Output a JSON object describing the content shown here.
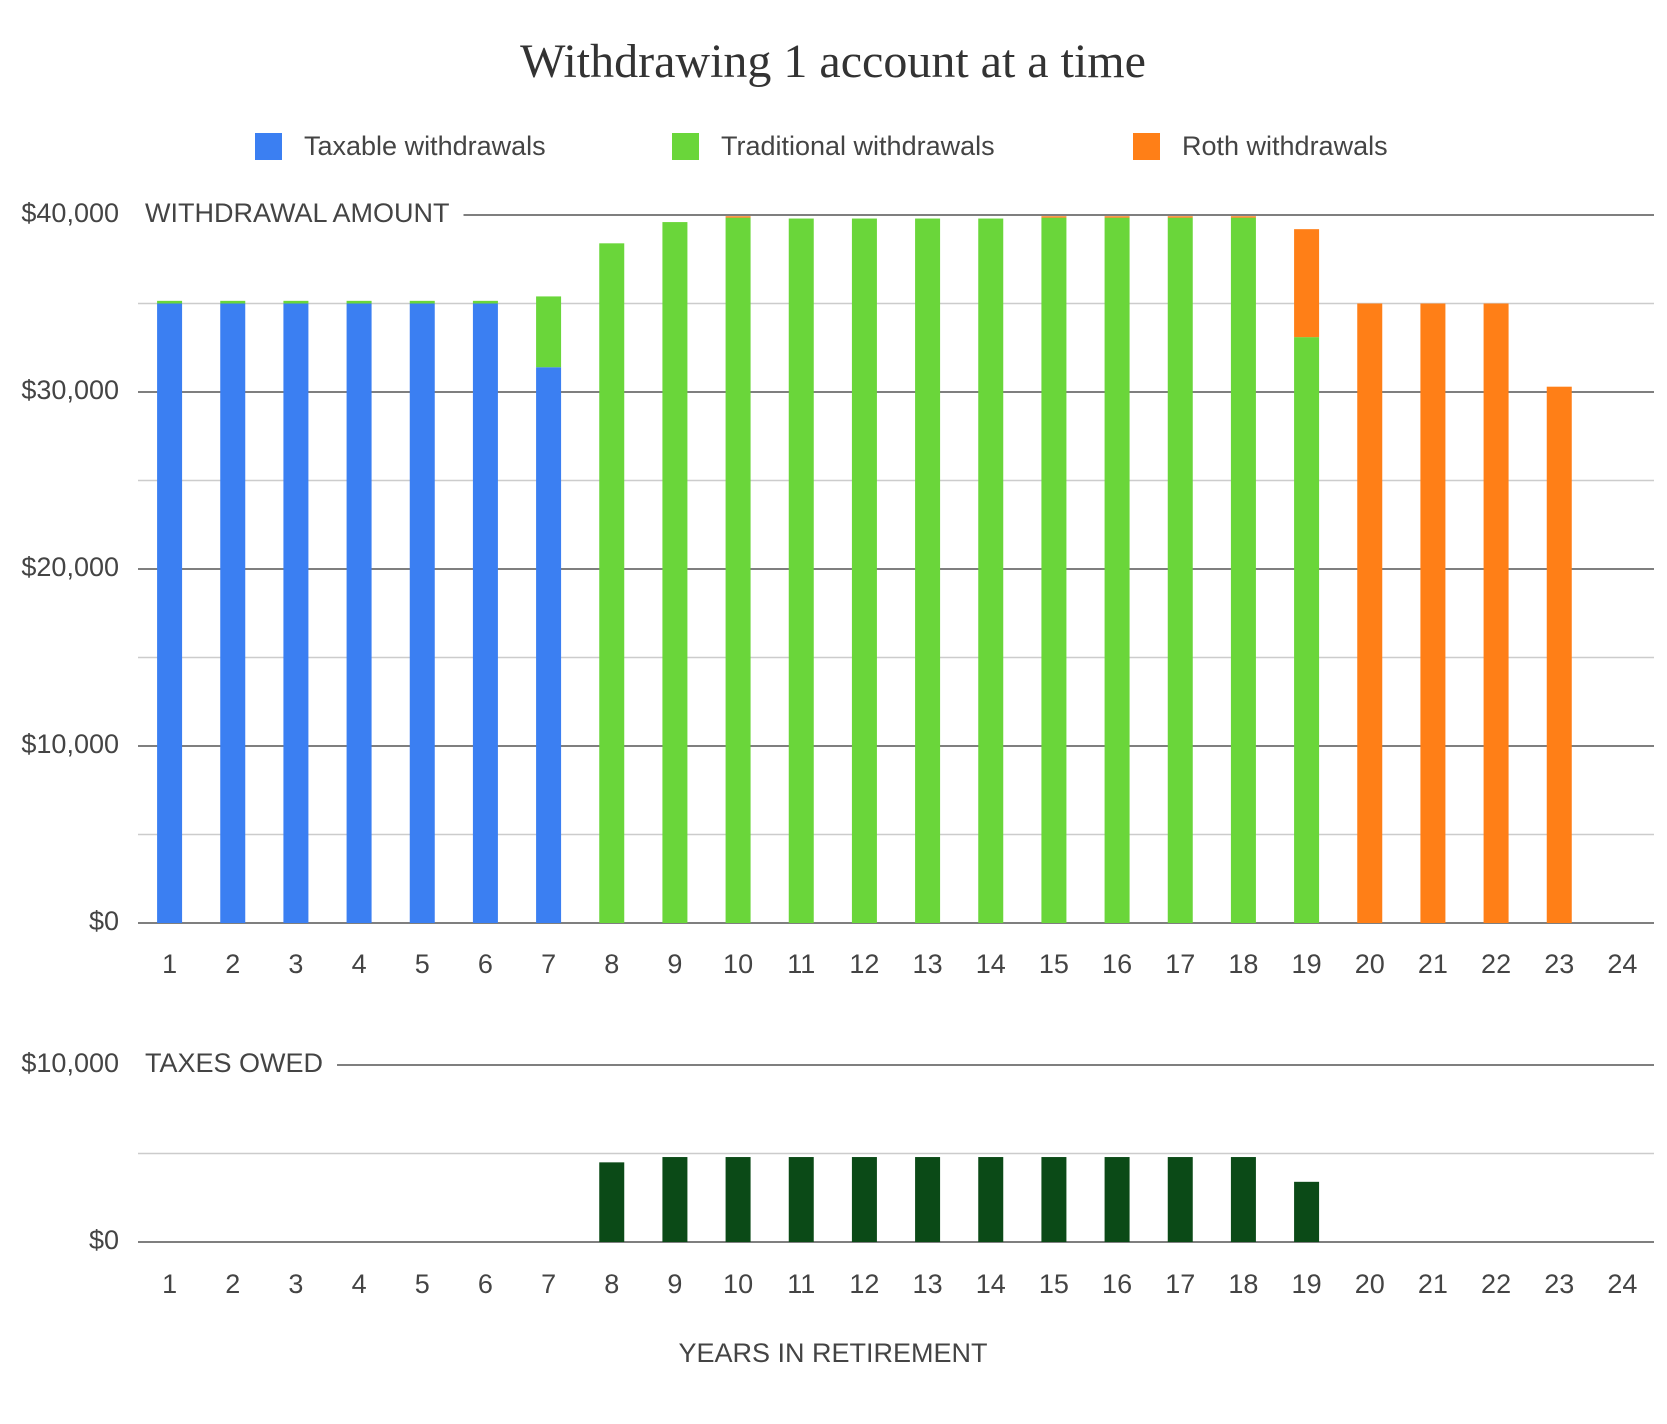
{
  "chart_data": [
    {
      "type": "bar",
      "stacked": true,
      "title": "Withdrawing 1 account at a time",
      "panel_label": "WITHDRAWAL AMOUNT",
      "categories": [
        "1",
        "2",
        "3",
        "4",
        "5",
        "6",
        "7",
        "8",
        "9",
        "10",
        "11",
        "12",
        "13",
        "14",
        "15",
        "16",
        "17",
        "18",
        "19",
        "20",
        "21",
        "22",
        "23",
        "24"
      ],
      "series": [
        {
          "name": "Taxable withdrawals",
          "color": "#3b7ff2",
          "values": [
            35000,
            35000,
            35000,
            35000,
            35000,
            35000,
            31400,
            0,
            0,
            0,
            0,
            0,
            0,
            0,
            0,
            0,
            0,
            0,
            0,
            0,
            0,
            0,
            0,
            0
          ]
        },
        {
          "name": "Traditional withdrawals",
          "color": "#6ad63a",
          "values": [
            150,
            150,
            150,
            150,
            150,
            150,
            4000,
            38400,
            39600,
            39850,
            39800,
            39800,
            39800,
            39800,
            39850,
            39850,
            39850,
            39850,
            33100,
            0,
            0,
            0,
            0,
            0
          ]
        },
        {
          "name": "Roth withdrawals",
          "color": "#ff7f17",
          "values": [
            0,
            0,
            0,
            0,
            0,
            0,
            0,
            0,
            0,
            80,
            0,
            0,
            0,
            0,
            80,
            80,
            80,
            80,
            6100,
            35000,
            35000,
            35000,
            30300,
            0
          ]
        }
      ],
      "ylim": [
        0,
        40000
      ],
      "yticks": [
        {
          "value": 0,
          "label": "$0"
        },
        {
          "value": 10000,
          "label": "$10,000"
        },
        {
          "value": 20000,
          "label": "$20,000"
        },
        {
          "value": 30000,
          "label": "$30,000"
        },
        {
          "value": 40000,
          "label": "$40,000"
        }
      ],
      "minor_yticks": [
        5000,
        15000,
        25000,
        35000
      ],
      "grid": true,
      "legend": "top"
    },
    {
      "type": "bar",
      "panel_label": "TAXES OWED",
      "x_label": "YEARS IN RETIREMENT",
      "categories": [
        "1",
        "2",
        "3",
        "4",
        "5",
        "6",
        "7",
        "8",
        "9",
        "10",
        "11",
        "12",
        "13",
        "14",
        "15",
        "16",
        "17",
        "18",
        "19",
        "20",
        "21",
        "22",
        "23",
        "24"
      ],
      "values": [
        0,
        0,
        0,
        0,
        0,
        0,
        0,
        4500,
        4800,
        4800,
        4800,
        4800,
        4800,
        4800,
        4800,
        4800,
        4800,
        4800,
        3400,
        0,
        0,
        0,
        0,
        0
      ],
      "color": "#0b4a17",
      "ylim": [
        0,
        10000
      ],
      "yticks": [
        {
          "value": 0,
          "label": "$0"
        },
        {
          "value": 10000,
          "label": "$10,000"
        }
      ],
      "minor_yticks": [
        5000
      ],
      "grid": true
    }
  ]
}
